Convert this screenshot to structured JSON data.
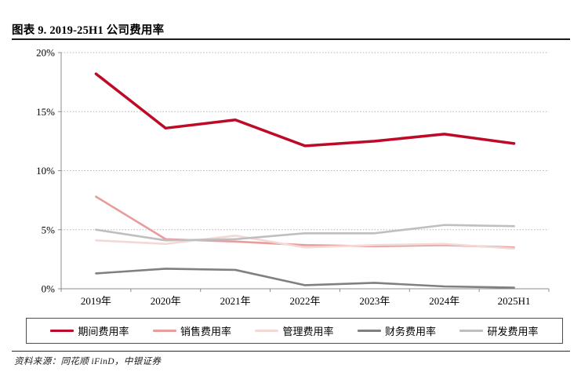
{
  "header": {
    "title": "图表 9. 2019-25H1 公司费用率"
  },
  "footer": {
    "source": "资料来源：同花顺 iFinD，中银证券"
  },
  "colors": {
    "period_expense": "#BE0A26",
    "sales_expense": "#E89C9C",
    "admin_expense": "#F3D9D6",
    "finance_expense": "#808080",
    "rd_expense": "#BFBFBF",
    "axis": "#8c8c8c",
    "gridline": "#b3b3b3",
    "rule": "#1a1a1a"
  },
  "chart_data": {
    "type": "line",
    "title": "图表 9. 2019-25H1 公司费用率",
    "categories": [
      "2019年",
      "2020年",
      "2021年",
      "2022年",
      "2023年",
      "2024年",
      "2025H1"
    ],
    "series": [
      {
        "name": "期间费用率",
        "color": "#BE0A26",
        "width": 3.5,
        "values": [
          18.2,
          13.6,
          14.3,
          12.1,
          12.5,
          13.1,
          12.3
        ]
      },
      {
        "name": "销售费用率",
        "color": "#E89C9C",
        "width": 2.6,
        "values": [
          7.8,
          4.2,
          4.0,
          3.7,
          3.6,
          3.7,
          3.5
        ]
      },
      {
        "name": "管理费用率",
        "color": "#F3D9D6",
        "width": 2.6,
        "values": [
          4.1,
          3.8,
          4.5,
          3.5,
          3.7,
          3.8,
          3.4
        ]
      },
      {
        "name": "财务费用率",
        "color": "#808080",
        "width": 2.6,
        "values": [
          1.3,
          1.7,
          1.6,
          0.3,
          0.5,
          0.2,
          0.1
        ]
      },
      {
        "name": "研发费用率",
        "color": "#BFBFBF",
        "width": 2.6,
        "values": [
          5.0,
          4.1,
          4.2,
          4.7,
          4.7,
          5.4,
          5.3
        ]
      }
    ],
    "xlabel": "",
    "ylabel": "",
    "y_axis": {
      "min": 0,
      "max": 20,
      "step": 5,
      "tick_labels": [
        "0%",
        "5%",
        "10%",
        "15%",
        "20%"
      ],
      "unit": "%"
    },
    "grid": "horizontal-dotted",
    "legend_position": "bottom"
  }
}
